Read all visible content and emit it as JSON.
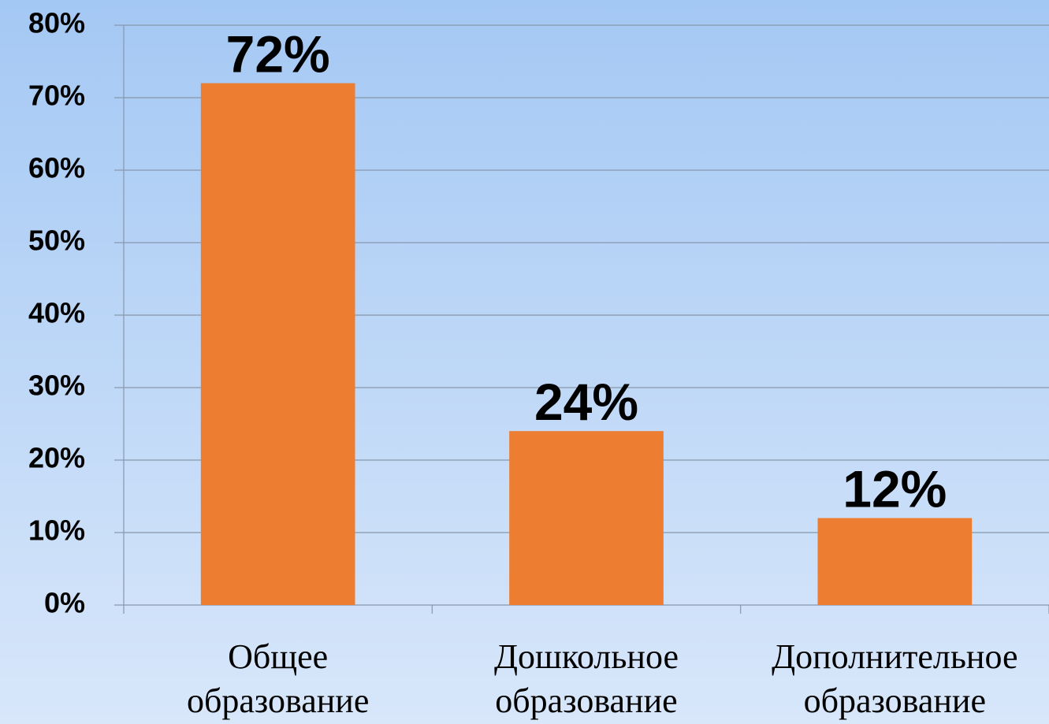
{
  "chart_data": {
    "type": "bar",
    "categories": [
      "Общее образование",
      "Дошкольное образование",
      "Дополнительное образование"
    ],
    "values": [
      72,
      24,
      12
    ],
    "value_labels": [
      "72%",
      "24%",
      "12%"
    ],
    "color": "#ed7d31",
    "ylim": [
      0,
      80
    ],
    "yticks": [
      {
        "value": 0,
        "label": "0%"
      },
      {
        "value": 10,
        "label": "10%"
      },
      {
        "value": 20,
        "label": "20%"
      },
      {
        "value": 30,
        "label": "30%"
      },
      {
        "value": 40,
        "label": "40%"
      },
      {
        "value": 50,
        "label": "50%"
      },
      {
        "value": 60,
        "label": "60%"
      },
      {
        "value": 70,
        "label": "70%"
      },
      {
        "value": 80,
        "label": "80%"
      }
    ],
    "grid": true
  }
}
